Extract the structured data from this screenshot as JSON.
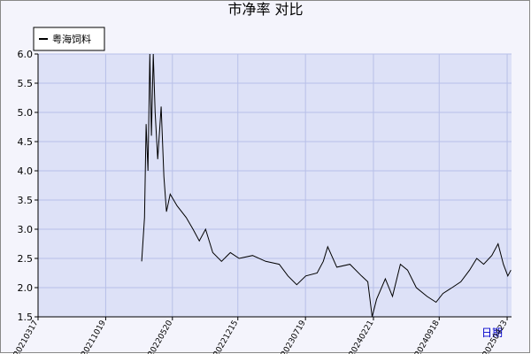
{
  "chart_data": {
    "type": "line",
    "title": "市净率  对比",
    "x_label": "日期",
    "x": [
      "20220211",
      "20220220",
      "20220225",
      "20220303",
      "20220309",
      "20220314",
      "20220320",
      "20220326",
      "20220403",
      "20220414",
      "20220423",
      "20220501",
      "20220513",
      "20220604",
      "20220703",
      "20220725",
      "20220814",
      "20220903",
      "20220926",
      "20221024",
      "20221121",
      "20221219",
      "20230131",
      "20230314",
      "20230426",
      "20230524",
      "20230621",
      "20230720",
      "20230825",
      "20230914",
      "20230928",
      "20231027",
      "20231208",
      "20240114",
      "20240203",
      "20240217",
      "20240302",
      "20240330",
      "20240422",
      "20240517",
      "20240609",
      "20240707",
      "20240810",
      "20240908",
      "20240930",
      "20241029",
      "20241126",
      "20241224",
      "20250116",
      "20250207",
      "20250305",
      "20250325",
      "20250411",
      "20250425",
      "20250505"
    ],
    "series": [
      {
        "name": "粤海饲料",
        "color": "#000000",
        "values": [
          2.45,
          3.2,
          4.8,
          4.0,
          6.0,
          4.6,
          6.0,
          5.0,
          4.2,
          5.1,
          3.9,
          3.3,
          3.6,
          3.4,
          3.2,
          3.0,
          2.8,
          3.0,
          2.6,
          2.45,
          2.6,
          2.5,
          2.55,
          2.45,
          2.4,
          2.2,
          2.05,
          2.2,
          2.25,
          2.45,
          2.7,
          2.35,
          2.4,
          2.2,
          2.1,
          1.5,
          1.8,
          2.15,
          1.85,
          2.4,
          2.3,
          2.0,
          1.85,
          1.75,
          1.9,
          2.0,
          2.1,
          2.3,
          2.5,
          2.4,
          2.55,
          2.75,
          2.4,
          2.2,
          2.3
        ]
      }
    ],
    "xlim": [
      "20210317",
      "20250507"
    ],
    "xticks": [
      "20210317",
      "20211019",
      "20220520",
      "20221215",
      "20230719",
      "20240221",
      "20240918",
      "20250423"
    ],
    "ylim": [
      1.5,
      6.0
    ],
    "yticks": [
      {
        "value": 1.5,
        "label": "1.5"
      },
      {
        "value": 2.0,
        "label": "2.0"
      },
      {
        "value": 2.5,
        "label": "2.5"
      },
      {
        "value": 3.0,
        "label": "3.0"
      },
      {
        "value": 3.5,
        "label": "3.5"
      },
      {
        "value": 4.0,
        "label": "4.0"
      },
      {
        "value": 4.5,
        "label": "4.5"
      },
      {
        "value": 5.0,
        "label": "5.0"
      },
      {
        "value": 5.5,
        "label": "5.5"
      },
      {
        "value": 6.0,
        "label": "6.0"
      }
    ],
    "grid": true
  }
}
